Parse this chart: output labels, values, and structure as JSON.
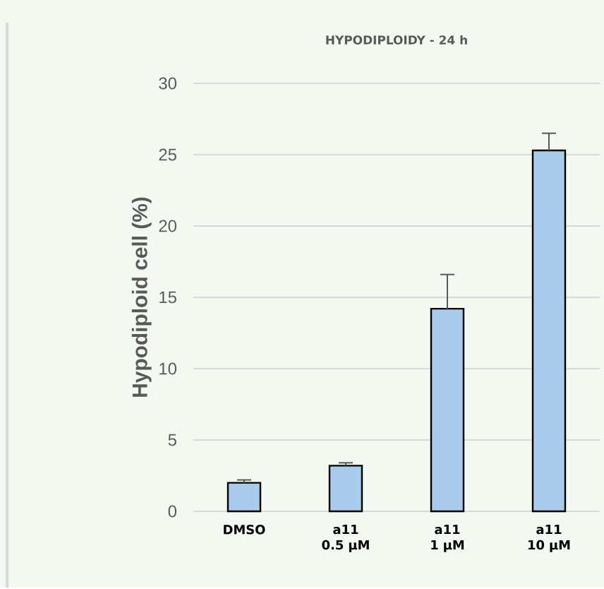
{
  "chart_data": {
    "type": "bar",
    "title": "HYPODIPLOIDY - 24 h",
    "ylabel": "Hypodiploid cell (%)",
    "categories": [
      "DMSO",
      "a11 0.5 µM",
      "a11 1 µM",
      "a11 10 µM"
    ],
    "values": [
      2.0,
      3.2,
      14.2,
      25.3
    ],
    "errors": [
      [
        2.0,
        2.2
      ],
      [
        3.2,
        3.4
      ],
      [
        14.2,
        16.6
      ],
      [
        25.3,
        26.5
      ]
    ],
    "color": "#a9cbeb",
    "ylim": [
      0,
      30
    ],
    "yticks": [
      0,
      5,
      10,
      15,
      20,
      25,
      30
    ],
    "grid": "y"
  }
}
